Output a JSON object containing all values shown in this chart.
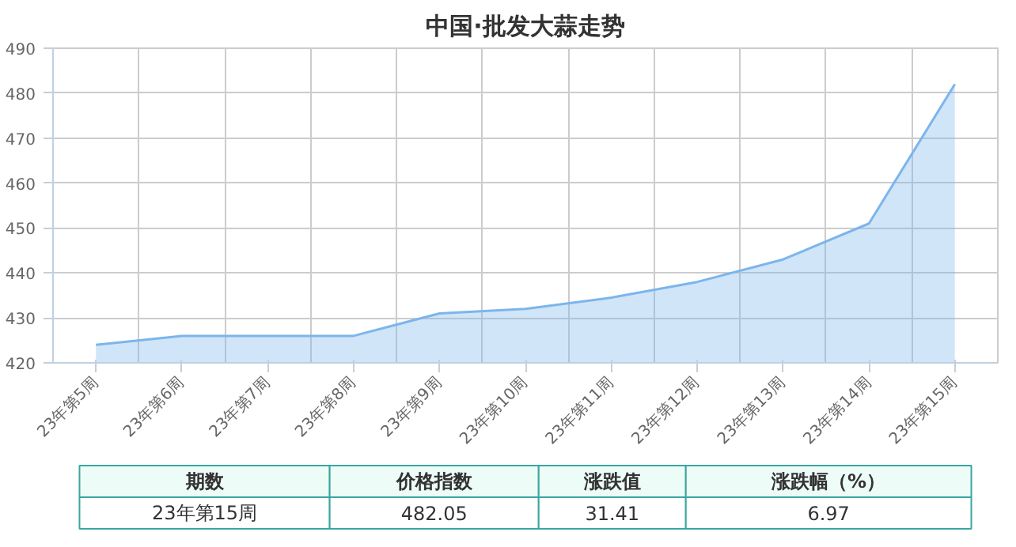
{
  "chart_data": {
    "type": "area",
    "title": "中国·批发大蒜走势",
    "categories": [
      "23年第5周",
      "23年第6周",
      "23年第7周",
      "23年第8周",
      "23年第9周",
      "23年第10周",
      "23年第11周",
      "23年第12周",
      "23年第13周",
      "23年第14周",
      "23年第15周"
    ],
    "values": [
      424,
      426,
      426,
      426,
      431,
      432,
      434.5,
      438,
      443,
      451,
      482
    ],
    "color": "#7cb5ec",
    "ylim": [
      420,
      490
    ],
    "yticks": [
      420,
      430,
      440,
      450,
      460,
      470,
      480,
      490
    ],
    "grid": true,
    "annotations": [
      "期数",
      "价格指数",
      "涨跌值",
      "涨跌幅（%）",
      "23年第15周",
      "482.05",
      "31.41",
      "6.97"
    ]
  }
}
